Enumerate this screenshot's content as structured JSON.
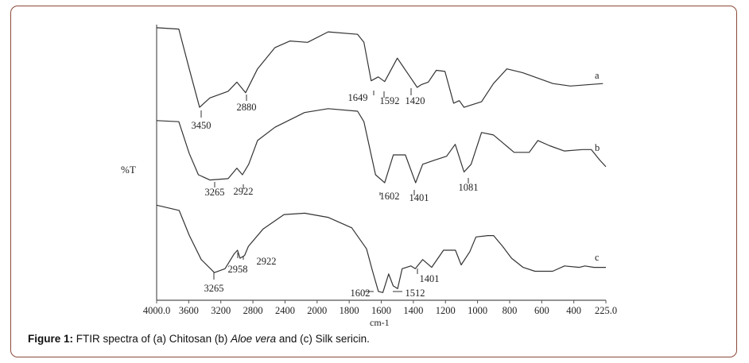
{
  "chart_data": {
    "type": "line",
    "title": "",
    "xlabel": "cm-1",
    "ylabel": "%T",
    "x_ticks": [
      4000.0,
      3600,
      3200,
      2800,
      2400,
      2000,
      1800,
      1600,
      1400,
      1200,
      1000,
      800,
      600,
      400,
      225.0
    ],
    "x_tick_labels": [
      "4000.0",
      "3600",
      "3200",
      "2800",
      "2400",
      "2000",
      "1800",
      "1600",
      "1400",
      "1200",
      "1000",
      "800",
      "600",
      "400",
      "225.0"
    ],
    "xlim": [
      4000,
      225
    ],
    "x_scale_note": "",
    "grid": false,
    "legend": "none",
    "line_color": "#333333",
    "series": [
      {
        "name": "a",
        "x": [
          4000,
          3723,
          3594,
          3465,
          3337,
          3109,
          3000,
          2891,
          2742,
          2525,
          2337,
          2119,
          1931,
          1748,
          1708,
          1663,
          1619,
          1579,
          1500,
          1416,
          1376,
          1351,
          1307,
          1257,
          1203,
          1149,
          1114,
          1084,
          975,
          901,
          817,
          718,
          530,
          421,
          241
        ],
        "y": [
          98.6,
          98.1,
          83.7,
          69.8,
          73.2,
          75.6,
          78.9,
          75.1,
          83.7,
          91.4,
          93.8,
          93.3,
          97.1,
          96.2,
          93.3,
          79.4,
          80.8,
          79.1,
          87.6,
          80.4,
          77.0,
          78.0,
          78.9,
          83.2,
          82.8,
          71.3,
          72.2,
          69.8,
          71.8,
          78.4,
          83.7,
          82.3,
          78.4,
          77.5,
          78.4
        ],
        "annotations": [
          "3450",
          "2880",
          "1649",
          "1592",
          "1420"
        ]
      },
      {
        "name": "b",
        "x": [
          4000,
          3723,
          3594,
          3480,
          3337,
          3109,
          3000,
          2931,
          2852,
          2742,
          2525,
          2158,
          1931,
          1748,
          1708,
          1636,
          1579,
          1525,
          1450,
          1386,
          1342,
          1267,
          1193,
          1139,
          1084,
          1040,
          975,
          901,
          772,
          678,
          624,
          550,
          460,
          353,
          305,
          258,
          225
        ],
        "y": [
          65.0,
          64.6,
          53.1,
          45.4,
          43.5,
          44.0,
          47.8,
          45.4,
          49.2,
          57.8,
          62.6,
          67.9,
          69.3,
          68.4,
          64.6,
          45.4,
          42.5,
          52.6,
          52.6,
          42.5,
          49.2,
          50.7,
          52.1,
          56.4,
          46.4,
          49.2,
          60.7,
          59.8,
          53.5,
          53.5,
          57.8,
          55.9,
          54.0,
          54.5,
          54.5,
          50.7,
          48.3
        ],
        "annotations": [
          "3265",
          "2922",
          "1602",
          "1401",
          "1081"
        ]
      },
      {
        "name": "c",
        "x": [
          4000,
          3720,
          3592,
          3444,
          3280,
          3148,
          3036,
          2992,
          2960,
          2904,
          2856,
          2672,
          2412,
          2156,
          1932,
          1784,
          1692,
          1656,
          1618,
          1590,
          1554,
          1526,
          1498,
          1470,
          1416,
          1388,
          1342,
          1286,
          1212,
          1138,
          1102,
          1048,
          1010,
          936,
          900,
          844,
          788,
          716,
          642,
          532,
          458,
          370,
          339,
          290,
          225
        ],
        "y": [
          34.4,
          32.5,
          23.4,
          14.7,
          10.0,
          11.4,
          16.7,
          18.1,
          15.2,
          16.2,
          19.5,
          25.8,
          31.0,
          31.5,
          30.0,
          26.2,
          18.6,
          10.9,
          3.2,
          2.8,
          9.5,
          5.2,
          4.2,
          11.4,
          12.4,
          11.4,
          14.7,
          11.9,
          18.1,
          18.1,
          12.8,
          17.6,
          22.9,
          23.4,
          23.4,
          19.5,
          15.2,
          11.9,
          10.5,
          10.5,
          12.4,
          11.9,
          12.4,
          11.9,
          11.9
        ],
        "annotations": [
          "3265",
          "2958",
          "2922",
          "1602",
          "1512",
          "1401"
        ]
      }
    ]
  },
  "caption": {
    "label": "Figure 1:",
    "text_1": " FTIR spectra of (a) Chitosan (b) ",
    "italic": "Aloe vera",
    "text_2": " and (c) Silk sericin."
  },
  "colors": {
    "frame_border": "#8b4a3a",
    "line": "#333333"
  }
}
